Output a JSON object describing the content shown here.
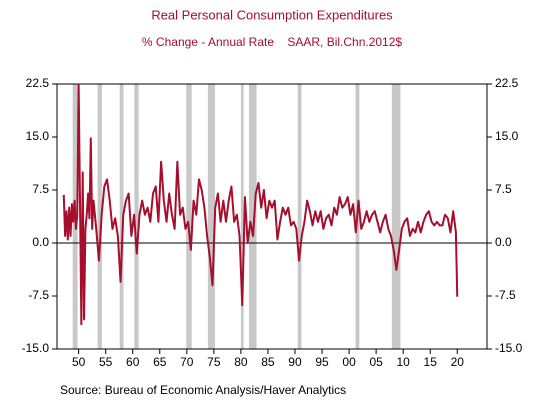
{
  "chart_data": {
    "type": "line",
    "title": "Real Personal Consumption Expenditures",
    "subtitle": "% Change - Annual Rate    SAAR, Bil.Chn.2012$",
    "source": "Source:  Bureau of Economic Analysis/Haver Analytics",
    "xlim": [
      1946,
      2025.5
    ],
    "ylim": [
      -15,
      22.5
    ],
    "xticks": [
      {
        "value": 1950,
        "label": "50"
      },
      {
        "value": 1955,
        "label": "55"
      },
      {
        "value": 1960,
        "label": "60"
      },
      {
        "value": 1965,
        "label": "65"
      },
      {
        "value": 1970,
        "label": "70"
      },
      {
        "value": 1975,
        "label": "75"
      },
      {
        "value": 1980,
        "label": "80"
      },
      {
        "value": 1985,
        "label": "85"
      },
      {
        "value": 1990,
        "label": "90"
      },
      {
        "value": 1995,
        "label": "95"
      },
      {
        "value": 2000,
        "label": "00"
      },
      {
        "value": 2005,
        "label": "05"
      },
      {
        "value": 2010,
        "label": "10"
      },
      {
        "value": 2015,
        "label": "15"
      },
      {
        "value": 2020,
        "label": "20"
      }
    ],
    "yticks": [
      {
        "value": -15,
        "label": "-15.0"
      },
      {
        "value": -7.5,
        "label": "-7.5"
      },
      {
        "value": 0,
        "label": "0.0"
      },
      {
        "value": 7.5,
        "label": "7.5"
      },
      {
        "value": 15,
        "label": "15.0"
      },
      {
        "value": 22.5,
        "label": "22.5"
      }
    ],
    "recessions": [
      [
        1948.9,
        1949.8
      ],
      [
        1953.5,
        1954.3
      ],
      [
        1957.6,
        1958.3
      ],
      [
        1960.3,
        1961.1
      ],
      [
        1969.9,
        1970.9
      ],
      [
        1973.9,
        1975.2
      ],
      [
        1980.0,
        1980.5
      ],
      [
        1981.5,
        1982.9
      ],
      [
        1990.5,
        1991.2
      ],
      [
        2001.2,
        2001.9
      ],
      [
        2007.9,
        2009.5
      ]
    ],
    "x": [
      1947.25,
      1947.5,
      1947.75,
      1948.0,
      1948.25,
      1948.5,
      1948.75,
      1949.0,
      1949.25,
      1949.5,
      1949.75,
      1950.0,
      1950.25,
      1950.5,
      1950.75,
      1951.0,
      1951.25,
      1951.5,
      1951.75,
      1952.0,
      1952.25,
      1952.5,
      1952.75,
      1953.25,
      1953.75,
      1954.25,
      1954.75,
      1955.25,
      1955.75,
      1956.25,
      1956.75,
      1957.25,
      1957.75,
      1958.25,
      1958.75,
      1959.25,
      1959.75,
      1960.25,
      1960.75,
      1961.25,
      1961.75,
      1962.25,
      1962.75,
      1963.25,
      1963.75,
      1964.25,
      1964.75,
      1965.25,
      1965.75,
      1966.25,
      1966.75,
      1967.25,
      1967.75,
      1968.25,
      1968.75,
      1969.25,
      1969.75,
      1970.25,
      1970.75,
      1971.25,
      1971.75,
      1972.25,
      1972.75,
      1973.25,
      1973.75,
      1974.25,
      1974.75,
      1975.25,
      1975.75,
      1976.25,
      1976.75,
      1977.25,
      1977.75,
      1978.25,
      1978.75,
      1979.25,
      1979.75,
      1980.25,
      1980.75,
      1981.25,
      1981.75,
      1982.25,
      1982.75,
      1983.25,
      1983.75,
      1984.25,
      1984.75,
      1985.25,
      1985.75,
      1986.25,
      1986.75,
      1987.25,
      1987.75,
      1988.25,
      1988.75,
      1989.25,
      1989.75,
      1990.25,
      1990.75,
      1991.25,
      1991.75,
      1992.25,
      1992.75,
      1993.25,
      1993.75,
      1994.25,
      1994.75,
      1995.25,
      1995.75,
      1996.25,
      1996.75,
      1997.25,
      1997.75,
      1998.25,
      1998.75,
      1999.25,
      1999.75,
      2000.25,
      2000.75,
      2001.25,
      2001.75,
      2002.25,
      2002.75,
      2003.25,
      2003.75,
      2004.25,
      2004.75,
      2005.25,
      2005.75,
      2006.25,
      2006.75,
      2007.25,
      2007.75,
      2008.25,
      2008.75,
      2009.25,
      2009.75,
      2010.25,
      2010.75,
      2011.25,
      2011.75,
      2012.25,
      2012.75,
      2013.25,
      2013.75,
      2014.25,
      2014.75,
      2015.25,
      2015.75,
      2016.25,
      2016.75,
      2017.25,
      2017.75,
      2018.25,
      2018.75,
      2019.25,
      2019.75,
      2020.0
    ],
    "series": [
      {
        "color": "#a50f2d",
        "values": [
          6.8,
          1.0,
          4.5,
          0.5,
          5.0,
          1.0,
          5.5,
          3.0,
          6.0,
          2.0,
          4.0,
          22.4,
          6.0,
          -11.5,
          10.0,
          -10.8,
          2.0,
          4.0,
          7.0,
          3.5,
          14.8,
          2.0,
          6.0,
          2.0,
          -2.5,
          4.0,
          8.0,
          9.0,
          6.0,
          2.0,
          3.5,
          1.0,
          -5.5,
          4.0,
          6.0,
          7.0,
          1.0,
          4.0,
          -1.5,
          4.0,
          6.0,
          4.0,
          5.0,
          3.0,
          7.0,
          8.0,
          3.0,
          11.5,
          6.0,
          3.0,
          7.0,
          4.0,
          2.0,
          11.5,
          4.0,
          5.0,
          2.0,
          3.0,
          -1.0,
          6.0,
          4.0,
          9.0,
          7.5,
          5.0,
          1.0,
          -2.0,
          -6.0,
          5.0,
          7.0,
          3.0,
          6.0,
          3.0,
          6.0,
          8.0,
          3.0,
          4.0,
          1.0,
          -8.8,
          6.5,
          0.0,
          3.0,
          1.0,
          7.0,
          8.5,
          5.0,
          7.5,
          3.5,
          6.0,
          5.0,
          6.0,
          0.5,
          3.0,
          5.0,
          4.0,
          5.0,
          2.5,
          3.0,
          2.0,
          -2.5,
          1.0,
          3.0,
          6.0,
          4.5,
          2.5,
          4.5,
          3.0,
          4.5,
          2.0,
          3.5,
          4.0,
          2.5,
          5.0,
          4.0,
          6.5,
          5.0,
          5.5,
          6.5,
          4.0,
          5.5,
          1.5,
          6.0,
          2.0,
          3.0,
          4.5,
          3.0,
          4.0,
          4.5,
          3.0,
          1.5,
          3.0,
          4.0,
          2.0,
          1.0,
          -1.0,
          -3.8,
          -1.0,
          2.0,
          3.0,
          3.5,
          1.0,
          2.0,
          1.5,
          3.0,
          1.5,
          3.0,
          4.0,
          4.5,
          3.0,
          2.5,
          3.0,
          2.5,
          2.5,
          4.0,
          3.5,
          1.5,
          4.5,
          1.5,
          -7.6
        ]
      }
    ]
  }
}
